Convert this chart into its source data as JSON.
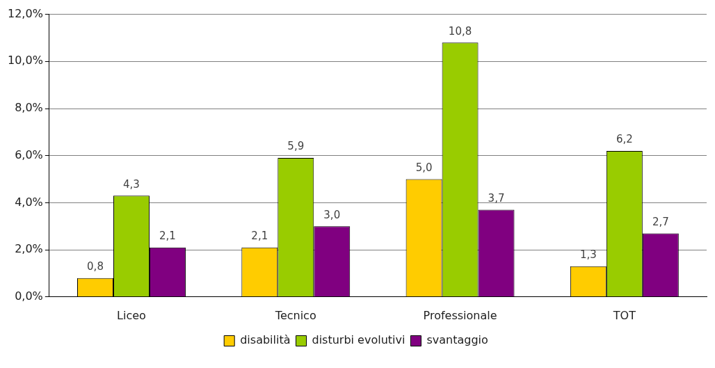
{
  "chart_data": {
    "type": "bar",
    "categories": [
      "Liceo",
      "Tecnico",
      "Professionale",
      "TOT"
    ],
    "series": [
      {
        "name": "disabilità",
        "color": "#ffcc00",
        "values": [
          0.8,
          2.1,
          5.0,
          1.3
        ],
        "value_labels": [
          "0,8",
          "2,1",
          "5,0",
          "1,3"
        ]
      },
      {
        "name": "disturbi evolutivi",
        "color": "#99cc00",
        "values": [
          4.3,
          5.9,
          10.8,
          6.2
        ],
        "value_labels": [
          "4,3",
          "5,9",
          "10,8",
          "6,2"
        ]
      },
      {
        "name": "svantaggio",
        "color": "#800080",
        "values": [
          2.1,
          3.0,
          3.7,
          2.7
        ],
        "value_labels": [
          "2,1",
          "3,0",
          "3,7",
          "2,7"
        ]
      }
    ],
    "ylim": [
      0,
      12
    ],
    "yticks": [
      {
        "value": 0,
        "label": "0,0%"
      },
      {
        "value": 2,
        "label": "2,0%"
      },
      {
        "value": 4,
        "label": "4,0%"
      },
      {
        "value": 6,
        "label": "6,0%"
      },
      {
        "value": 8,
        "label": "8,0%"
      },
      {
        "value": 10,
        "label": "10,0%"
      },
      {
        "value": 12,
        "label": "12,0%"
      }
    ],
    "grid": "y",
    "legend": "bottom"
  }
}
